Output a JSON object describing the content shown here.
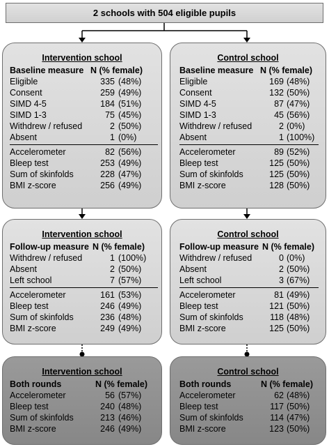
{
  "top": "2 schools with 504 eligible pupils",
  "baseline": {
    "intervention": {
      "title": "Intervention school",
      "header": [
        "Baseline measure",
        "N (% female)"
      ],
      "rows": [
        [
          "Eligible",
          "335",
          "(48%)"
        ],
        [
          "Consent",
          "259",
          "(49%)"
        ],
        [
          "SIMD 4-5",
          "184",
          "(51%)"
        ],
        [
          "SIMD 1-3",
          "75",
          "(45%)"
        ],
        [
          "Withdrew / refused",
          "2",
          "(50%)"
        ],
        [
          "Absent",
          "1",
          "(0%)"
        ]
      ],
      "rows2": [
        [
          "Accelerometer",
          "82",
          "(56%)"
        ],
        [
          "Bleep test",
          "253",
          "(49%)"
        ],
        [
          "Sum of skinfolds",
          "228",
          "(47%)"
        ],
        [
          "BMI z-score",
          "256",
          "(49%)"
        ]
      ]
    },
    "control": {
      "title": "Control school",
      "header": [
        "Baseline measure",
        "N (% female)"
      ],
      "rows": [
        [
          "Eligible",
          "169",
          "(48%)"
        ],
        [
          "Consent",
          "132",
          "(50%)"
        ],
        [
          "SIMD 4-5",
          "87",
          "(47%)"
        ],
        [
          "SIMD 1-3",
          "45",
          "(56%)"
        ],
        [
          "Withdrew / refused",
          "2",
          "(0%)"
        ],
        [
          "Absent",
          "1",
          "(100%)"
        ]
      ],
      "rows2": [
        [
          "Accelerometer",
          "89",
          "(52%)"
        ],
        [
          "Bleep test",
          "125",
          "(50%)"
        ],
        [
          "Sum of skinfolds",
          "125",
          "(50%)"
        ],
        [
          "BMI z-score",
          "128",
          "(50%)"
        ]
      ]
    }
  },
  "followup": {
    "intervention": {
      "title": "Intervention school",
      "header": [
        "Follow-up measure",
        "N (% female)"
      ],
      "rows": [
        [
          "Withdrew / refused",
          "1",
          "(100%)"
        ],
        [
          "Absent",
          "2",
          "(50%)"
        ],
        [
          "Left school",
          "7",
          "(57%)"
        ]
      ],
      "rows2": [
        [
          "Accelerometer",
          "161",
          "(53%)"
        ],
        [
          "Bleep test",
          "246",
          "(49%)"
        ],
        [
          "Sum of skinfolds",
          "236",
          "(48%)"
        ],
        [
          "BMI z-score",
          "249",
          "(49%)"
        ]
      ]
    },
    "control": {
      "title": "Control school",
      "header": [
        "Follow-up measure",
        "N (% female)"
      ],
      "rows": [
        [
          "Withdrew / refused",
          "0",
          "(0%)"
        ],
        [
          "Absent",
          "2",
          "(50%)"
        ],
        [
          "Left school",
          "3",
          "(67%)"
        ]
      ],
      "rows2": [
        [
          "Accelerometer",
          "81",
          "(49%)"
        ],
        [
          "Bleep test",
          "121",
          "(50%)"
        ],
        [
          "Sum of skinfolds",
          "118",
          "(48%)"
        ],
        [
          "BMI z-score",
          "125",
          "(50%)"
        ]
      ]
    }
  },
  "both": {
    "intervention": {
      "title": "Intervention school",
      "header": [
        "Both rounds",
        "N (% female)"
      ],
      "rows": [
        [
          "Accelerometer",
          "56",
          "(57%)"
        ],
        [
          "Bleep test",
          "240",
          "(48%)"
        ],
        [
          "Sum of skinfolds",
          "213",
          "(46%)"
        ],
        [
          "BMI z-score",
          "246",
          "(49%)"
        ]
      ]
    },
    "control": {
      "title": "Control school",
      "header": [
        "Both rounds",
        "N (% female)"
      ],
      "rows": [
        [
          "Accelerometer",
          "62",
          "(48%)"
        ],
        [
          "Bleep test",
          "117",
          "(50%)"
        ],
        [
          "Sum of skinfolds",
          "114",
          "(47%)"
        ],
        [
          "BMI z-score",
          "123",
          "(50%)"
        ]
      ]
    }
  }
}
